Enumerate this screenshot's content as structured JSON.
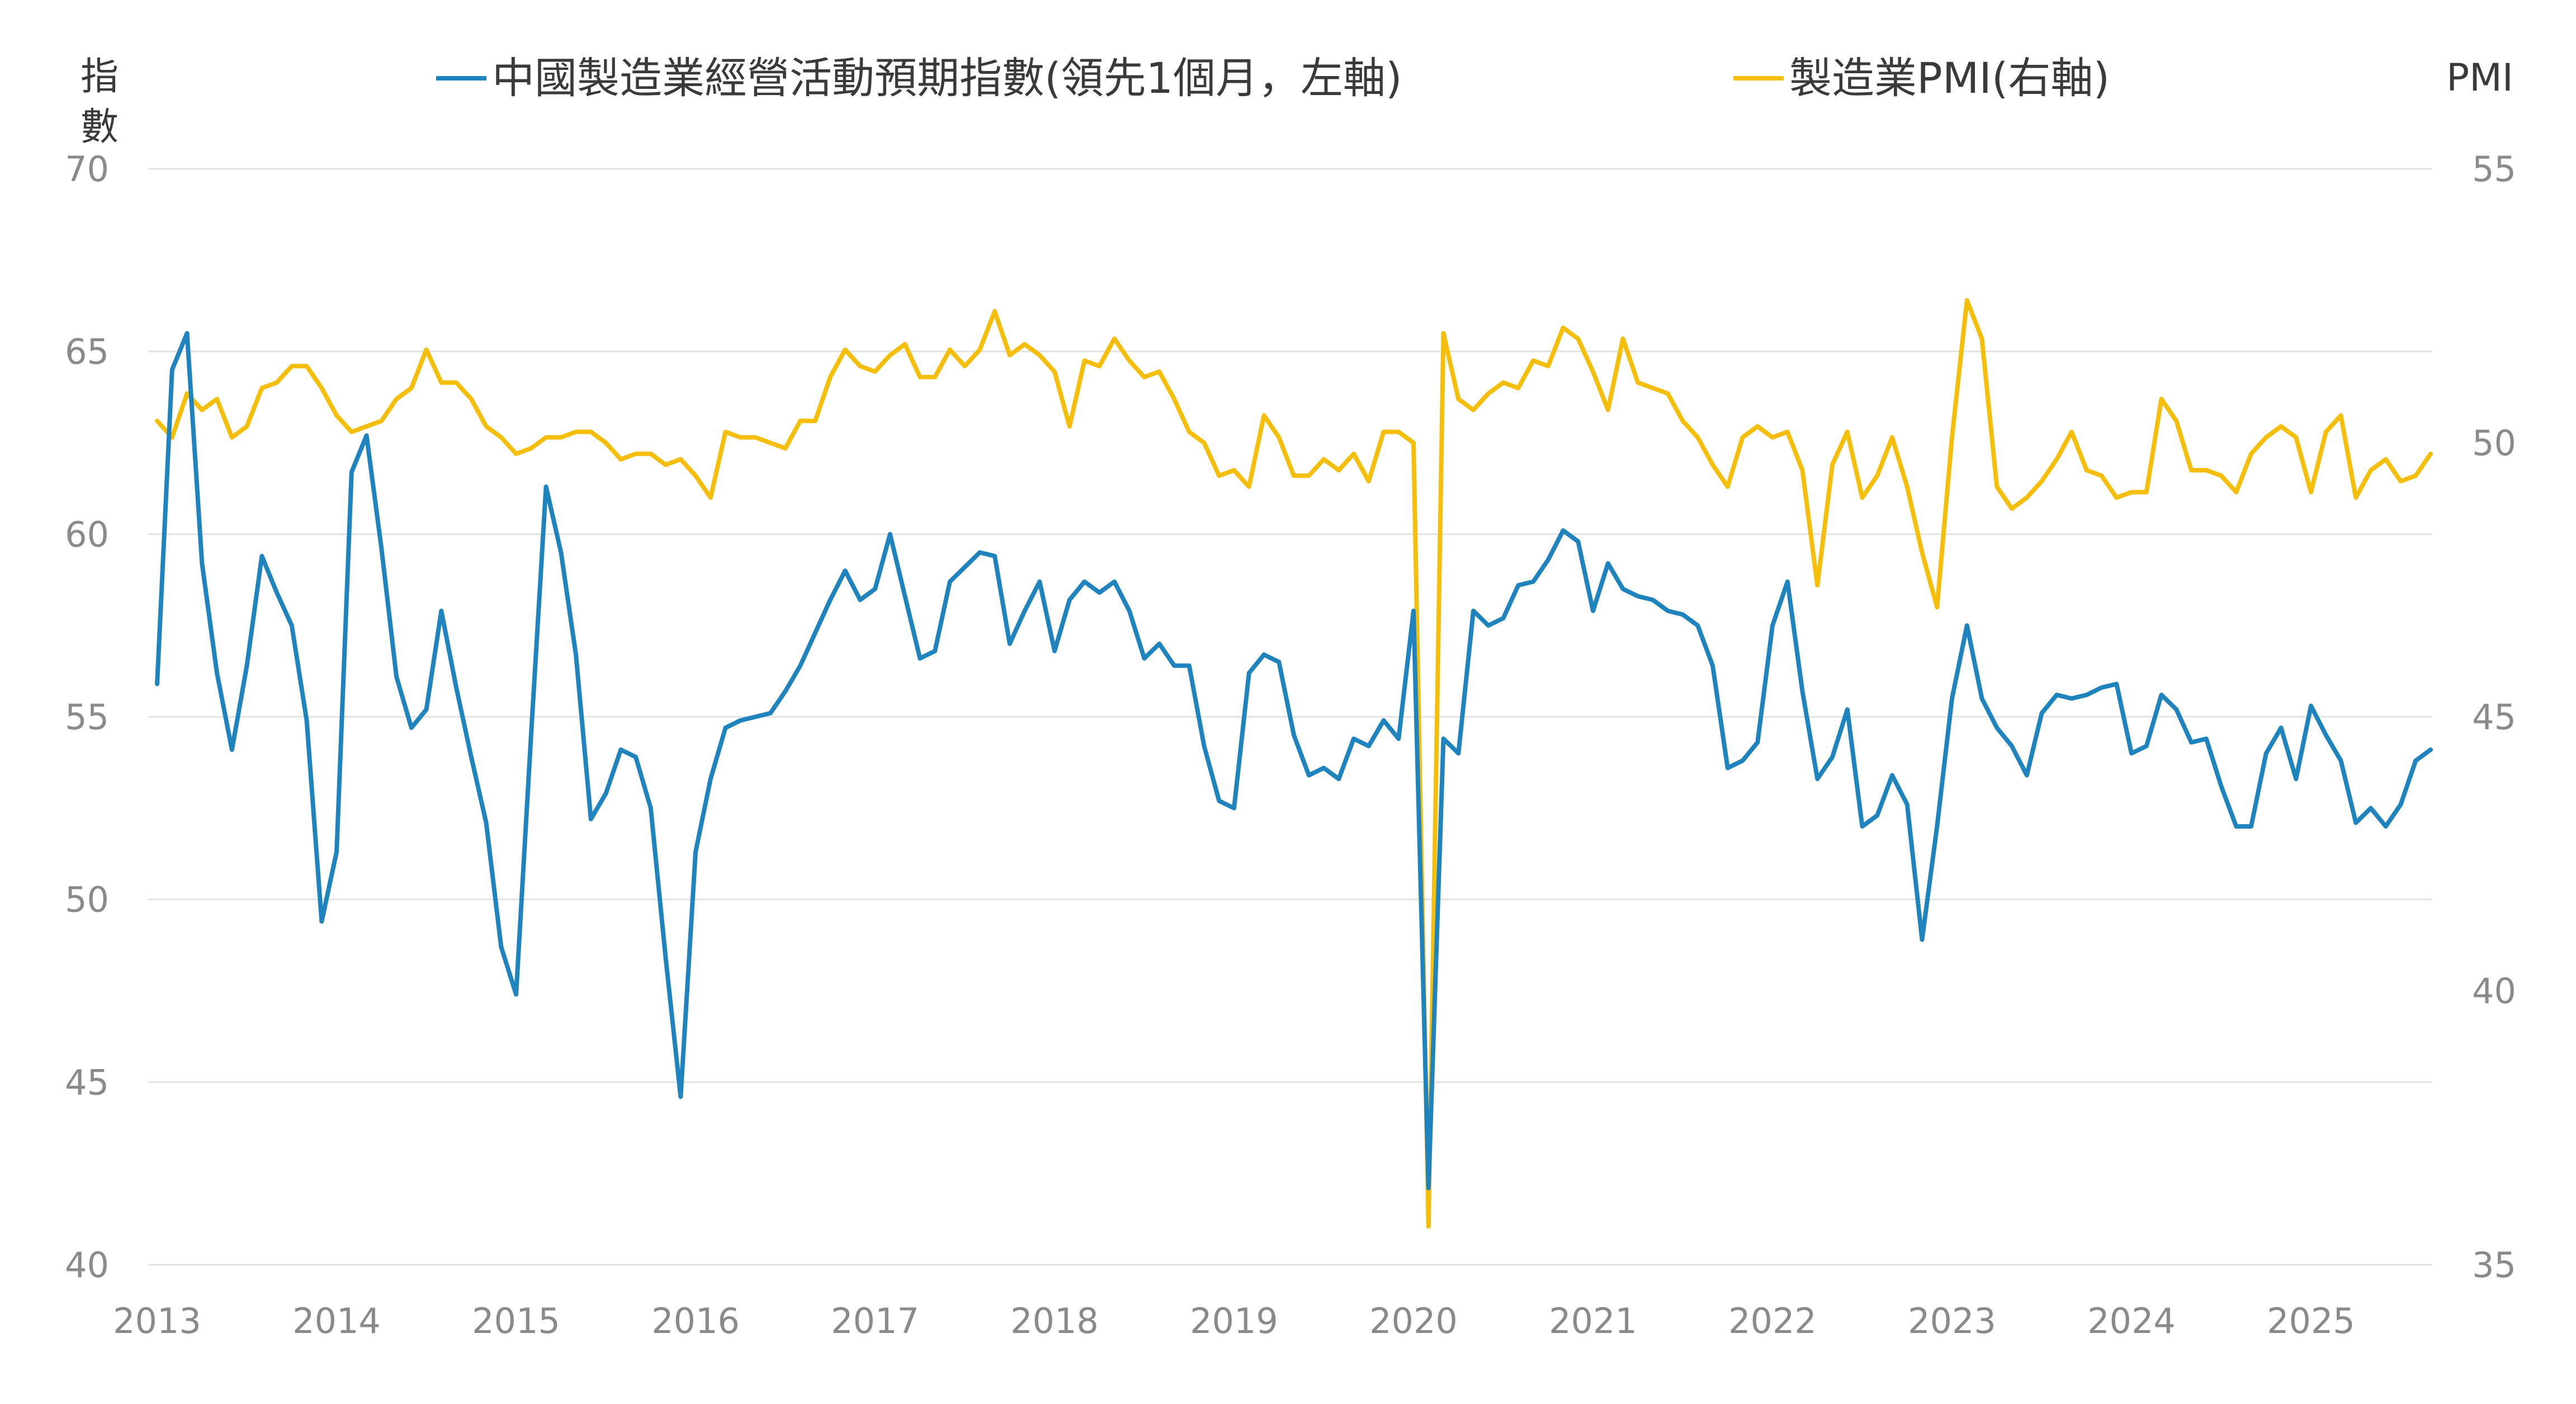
{
  "chart_data": {
    "type": "line",
    "title": "",
    "left_axis": {
      "title_lines": [
        "指",
        "數"
      ],
      "ticks": [
        70,
        65,
        60,
        55,
        50,
        45,
        40
      ],
      "range": [
        40,
        70
      ]
    },
    "right_axis": {
      "title": "PMI",
      "ticks": [
        55,
        50,
        45,
        40,
        35
      ],
      "range": [
        35,
        55
      ]
    },
    "x_axis": {
      "ticks": [
        "2013",
        "2014",
        "2015",
        "2016",
        "2017",
        "2018",
        "2019",
        "2020",
        "2021",
        "2022",
        "2023",
        "2024",
        "2025"
      ]
    },
    "grid": true,
    "legend_placement": "top",
    "x_start": "2013-01",
    "series": [
      {
        "name": "中國製造業經營活動預期指數(領先1個月，左軸)",
        "axis": "left",
        "color": "#1f84bd",
        "values": [
          55.9,
          64.5,
          65.5,
          59.2,
          56.2,
          54.1,
          56.4,
          59.4,
          58.4,
          57.5,
          54.9,
          49.4,
          51.3,
          61.7,
          62.7,
          59.6,
          56.1,
          54.7,
          55.2,
          57.9,
          55.8,
          53.9,
          52.1,
          48.7,
          47.4,
          54.5,
          61.3,
          59.5,
          56.7,
          52.2,
          52.9,
          54.1,
          53.9,
          52.5,
          48.4,
          44.6,
          51.3,
          53.3,
          54.7,
          54.9,
          55.0,
          55.1,
          55.7,
          56.4,
          57.3,
          58.2,
          59.0,
          58.2,
          58.5,
          60.0,
          58.3,
          56.6,
          56.8,
          58.7,
          59.1,
          59.5,
          59.4,
          57.0,
          57.9,
          58.7,
          56.8,
          58.2,
          58.7,
          58.4,
          58.7,
          57.9,
          56.6,
          57.0,
          56.4,
          56.4,
          54.2,
          52.7,
          52.5,
          56.2,
          56.7,
          56.5,
          54.5,
          53.4,
          53.6,
          53.3,
          54.4,
          54.2,
          54.9,
          54.4,
          57.9,
          42.1,
          54.4,
          54.0,
          57.9,
          57.5,
          57.7,
          58.6,
          58.7,
          59.3,
          60.1,
          59.8,
          57.9,
          59.2,
          58.5,
          58.3,
          58.2,
          57.9,
          57.8,
          57.5,
          56.4,
          53.6,
          53.8,
          54.3,
          57.5,
          58.7,
          55.7,
          53.3,
          53.9,
          55.2,
          52.0,
          52.3,
          53.4,
          52.6,
          48.9,
          52.0,
          55.5,
          57.5,
          55.5,
          54.7,
          54.2,
          53.4,
          55.1,
          55.6,
          55.5,
          55.6,
          55.8,
          55.9,
          54.0,
          54.2,
          55.6,
          55.2,
          54.3,
          54.4,
          53.1,
          52.0,
          52.0,
          54.0,
          54.7,
          53.3,
          55.3,
          54.5,
          53.8,
          52.1,
          52.5,
          52.0,
          52.6,
          53.8,
          54.1
        ]
      },
      {
        "name": "製造業PMI(右軸)",
        "axis": "right",
        "color": "#f5be0b",
        "values": [
          50.4,
          50.1,
          50.9,
          50.6,
          50.8,
          50.1,
          50.3,
          51.0,
          51.1,
          51.4,
          51.4,
          51.0,
          50.5,
          50.2,
          50.3,
          50.4,
          50.8,
          51.0,
          51.7,
          51.1,
          51.1,
          50.8,
          50.3,
          50.1,
          49.8,
          49.9,
          50.1,
          50.1,
          50.2,
          50.2,
          50.0,
          49.7,
          49.8,
          49.8,
          49.6,
          49.7,
          49.4,
          49.0,
          50.2,
          50.1,
          50.1,
          50.0,
          49.9,
          50.4,
          50.4,
          51.2,
          51.7,
          51.4,
          51.3,
          51.6,
          51.8,
          51.2,
          51.2,
          51.7,
          51.4,
          51.7,
          52.4,
          51.6,
          51.8,
          51.6,
          51.3,
          50.3,
          51.5,
          51.4,
          51.9,
          51.5,
          51.2,
          51.3,
          50.8,
          50.2,
          50.0,
          49.4,
          49.5,
          49.2,
          50.5,
          50.1,
          49.4,
          49.4,
          49.7,
          49.5,
          49.8,
          49.3,
          50.2,
          50.2,
          50.0,
          35.7,
          52.0,
          50.8,
          50.6,
          50.9,
          51.1,
          51.0,
          51.5,
          51.4,
          52.1,
          51.9,
          51.3,
          50.6,
          51.9,
          51.1,
          51.0,
          50.9,
          50.4,
          50.1,
          49.6,
          49.2,
          50.1,
          50.3,
          50.1,
          50.2,
          49.5,
          47.4,
          49.6,
          50.2,
          49.0,
          49.4,
          50.1,
          49.2,
          48.0,
          47.0,
          50.1,
          52.6,
          51.9,
          49.2,
          48.8,
          49.0,
          49.3,
          49.7,
          50.2,
          49.5,
          49.4,
          49.0,
          49.1,
          49.1,
          50.8,
          50.4,
          49.5,
          49.5,
          49.4,
          49.1,
          49.8,
          50.1,
          50.3,
          50.1,
          49.1,
          50.2,
          50.5,
          49.0,
          49.5,
          49.7,
          49.3,
          49.4,
          49.8
        ]
      }
    ]
  }
}
